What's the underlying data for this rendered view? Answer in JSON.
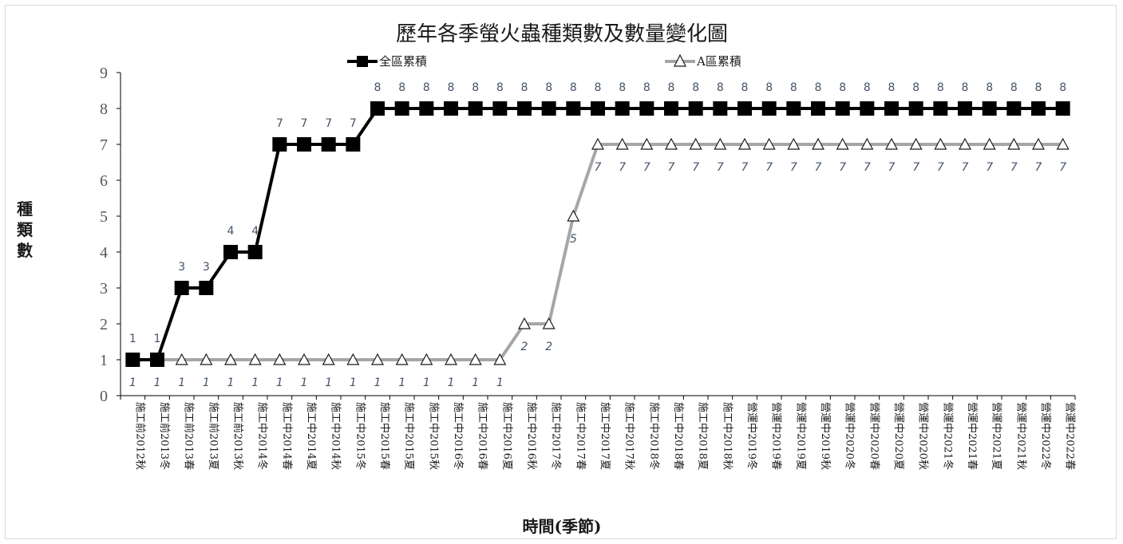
{
  "chart_data": {
    "type": "line",
    "title": "歷年各季螢火蟲種類數及數量變化圖",
    "xlabel": "時間(季節)",
    "ylabel": "種類數",
    "ylim": [
      0,
      9
    ],
    "yticks": [
      "0",
      "1",
      "2",
      "3",
      "4",
      "5",
      "6",
      "7",
      "8",
      "9"
    ],
    "grid": false,
    "legend_position": "top",
    "categories": [
      "施工前2012秋",
      "施工前2013冬",
      "施工前2013春",
      "施工前2013夏",
      "施工前2013秋",
      "施工中2014冬",
      "施工中2014春",
      "施工中2014夏",
      "施工中2014秋",
      "施工中2015冬",
      "施工中2015春",
      "施工中2015夏",
      "施工中2015秋",
      "施工中2016冬",
      "施工中2016春",
      "施工中2016夏",
      "施工中2016秋",
      "施工中2017冬",
      "施工中2017春",
      "施工中2017夏",
      "施工中2017秋",
      "施工中2018冬",
      "施工中2018春",
      "施工中2018夏",
      "施工中2018秋",
      "營運中2019冬",
      "營運中2019春",
      "營運中2019夏",
      "營運中2019秋",
      "營運中2020冬",
      "營運中2020春",
      "營運中2020夏",
      "營運中2020秋",
      "營運中2021冬",
      "營運中2021春",
      "營運中2021夏",
      "營運中2021秋",
      "營運中2022冬",
      "營運中2022春"
    ],
    "series": [
      {
        "name": "全區累積",
        "color": "#000000",
        "marker": "square",
        "values": [
          1,
          1,
          3,
          3,
          4,
          4,
          7,
          7,
          7,
          7,
          8,
          8,
          8,
          8,
          8,
          8,
          8,
          8,
          8,
          8,
          8,
          8,
          8,
          8,
          8,
          8,
          8,
          8,
          8,
          8,
          8,
          8,
          8,
          8,
          8,
          8,
          8,
          8,
          8
        ],
        "data_labels": [
          "1",
          "1",
          "3",
          "3",
          "4",
          "4",
          "7",
          "7",
          "7",
          "7",
          "8",
          "8",
          "8",
          "8",
          "8",
          "8",
          "8",
          "8",
          "8",
          "8",
          "8",
          "8",
          "8",
          "8",
          "8",
          "8",
          "8",
          "8",
          "8",
          "8",
          "8",
          "8",
          "8",
          "8",
          "8",
          "8",
          "8",
          "8",
          "8"
        ]
      },
      {
        "name": "A區累積",
        "color": "#a6a6a6",
        "marker": "triangle",
        "values": [
          1,
          1,
          1,
          1,
          1,
          1,
          1,
          1,
          1,
          1,
          1,
          1,
          1,
          1,
          1,
          1,
          2,
          2,
          5,
          7,
          7,
          7,
          7,
          7,
          7,
          7,
          7,
          7,
          7,
          7,
          7,
          7,
          7,
          7,
          7,
          7,
          7,
          7,
          7
        ],
        "data_labels": [
          "1",
          "1",
          "1",
          "1",
          "1",
          "1",
          "1",
          "1",
          "1",
          "1",
          "1",
          "1",
          "1",
          "1",
          "1",
          "1",
          "2",
          "2",
          "5",
          "7",
          "7",
          "7",
          "7",
          "7",
          "7",
          "7",
          "7",
          "7",
          "7",
          "7",
          "7",
          "7",
          "7",
          "7",
          "7",
          "7",
          "7",
          "7",
          "7"
        ]
      }
    ]
  }
}
